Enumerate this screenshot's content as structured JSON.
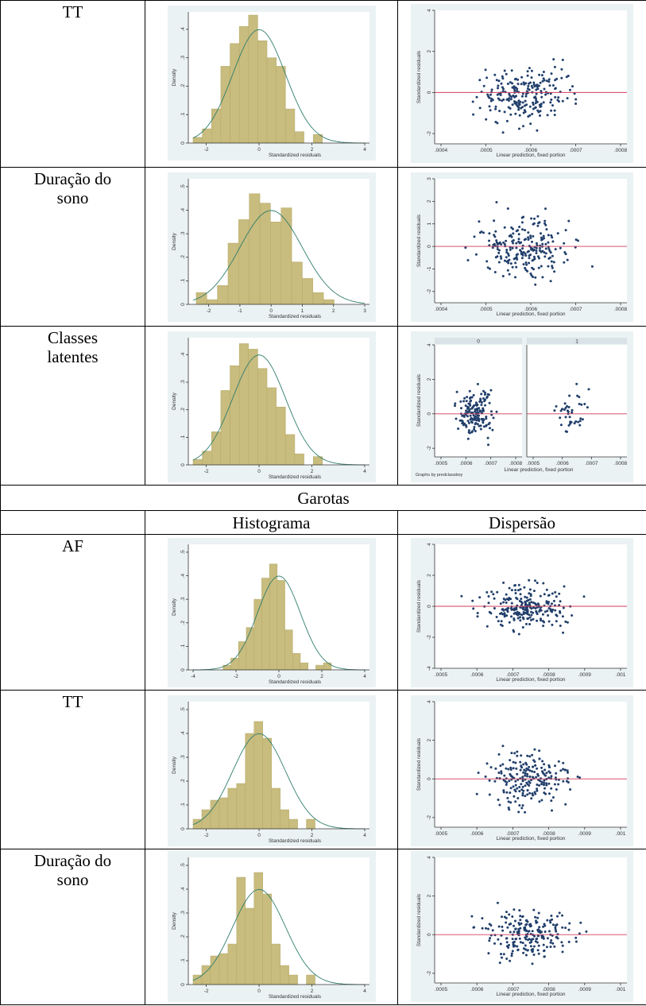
{
  "group_header": "Garotas",
  "column_headers": {
    "blank": "",
    "histogram": "Histograma",
    "scatter": "Dispersão"
  },
  "rows": [
    {
      "label": "TT",
      "label2": ""
    },
    {
      "label": "Duração do",
      "label2": "sono"
    },
    {
      "label": "Classes",
      "label2": "latentes"
    },
    {
      "label": "AF",
      "label2": ""
    },
    {
      "label": "TT",
      "label2": ""
    },
    {
      "label": "Duração do",
      "label2": "sono"
    }
  ],
  "hist_axis": {
    "xlabel": "Standardized residuals",
    "ylabel": "Density"
  },
  "scatter_axis": {
    "xlabel": "Linear prediction, fixed portion",
    "ylabel": "Standardized residuals"
  },
  "by_note": "Graphs by predclassboy",
  "by_panels": [
    "0",
    "1"
  ],
  "colors": {
    "bar": "#c8bc7e",
    "curve": "#2f7d6d",
    "refline": "#d23c5a",
    "dot": "#213f6b",
    "bg": "#eaf2f3"
  },
  "plots": [
    {
      "hist": {
        "type": "bar",
        "xlim": [
          -2.5,
          4
        ],
        "xticks": [
          "-2",
          "0",
          "2",
          "4"
        ],
        "yticks": [
          "0",
          ".1",
          ".2",
          ".3",
          ".4"
        ],
        "ylim": [
          0,
          0.45
        ],
        "bins_start": -2.5,
        "bin_width": 0.35,
        "values": [
          0.02,
          0.05,
          0.12,
          0.27,
          0.35,
          0.41,
          0.45,
          0.36,
          0.3,
          0.27,
          0.12,
          0.04,
          0.0,
          0.03,
          0.0
        ]
      },
      "scatter": {
        "type": "scatter",
        "xlim": [
          0.0004,
          0.00085
        ],
        "xticks": [
          ".0004",
          ".0005",
          ".0006",
          ".0007",
          ".0008"
        ],
        "ylim": [
          -2.5,
          4
        ],
        "yticks": [
          "-2",
          "0",
          "2",
          "4"
        ]
      }
    },
    {
      "hist": {
        "type": "bar",
        "xlim": [
          -2.5,
          3
        ],
        "xticks": [
          "-2",
          "-1",
          "0",
          "1",
          "2",
          "3"
        ],
        "yticks": [
          "0",
          ".1",
          ".2",
          ".3",
          ".4",
          ".5"
        ],
        "ylim": [
          0,
          0.52
        ],
        "bins_start": -2.4,
        "bin_width": 0.34,
        "values": [
          0.05,
          0.02,
          0.08,
          0.26,
          0.36,
          0.47,
          0.43,
          0.35,
          0.41,
          0.18,
          0.11,
          0.05,
          0.02
        ]
      },
      "scatter": {
        "type": "scatter",
        "xlim": [
          0.0004,
          0.0008
        ],
        "xticks": [
          ".0004",
          ".0005",
          ".0006",
          ".0007",
          ".0008"
        ],
        "ylim": [
          -2.5,
          3
        ],
        "yticks": [
          "-2",
          "-1",
          "0",
          "1",
          "2",
          "3"
        ]
      }
    },
    {
      "hist": {
        "type": "bar",
        "xlim": [
          -2.5,
          4
        ],
        "xticks": [
          "-2",
          "0",
          "2",
          "4"
        ],
        "yticks": [
          "0",
          ".1",
          ".2",
          ".3",
          ".4"
        ],
        "ylim": [
          0,
          0.45
        ],
        "bins_start": -2.5,
        "bin_width": 0.35,
        "values": [
          0.02,
          0.05,
          0.12,
          0.27,
          0.36,
          0.44,
          0.42,
          0.35,
          0.28,
          0.21,
          0.11,
          0.04,
          0.0,
          0.03,
          0.0
        ]
      },
      "scatter": {
        "type": "by",
        "xticks": [
          ".0005",
          ".0006",
          ".0007",
          ".0008"
        ],
        "ylim": [
          -2.5,
          4
        ],
        "yticks": [
          "-2",
          "0",
          "2",
          "4"
        ]
      }
    },
    {
      "hist": {
        "type": "bar",
        "xlim": [
          -4,
          4
        ],
        "xticks": [
          "-4",
          "-2",
          "0",
          "2",
          "4"
        ],
        "yticks": [
          "0",
          ".1",
          ".2",
          ".3",
          ".4",
          ".5"
        ],
        "ylim": [
          0,
          0.52
        ],
        "bins_start": -2.6,
        "bin_width": 0.36,
        "values": [
          0.02,
          0.05,
          0.12,
          0.18,
          0.3,
          0.39,
          0.45,
          0.38,
          0.17,
          0.07,
          0.03,
          0.0,
          0.02,
          0.03,
          0.0
        ]
      },
      "scatter": {
        "type": "scatter",
        "xlim": [
          0.0005,
          0.001
        ],
        "xticks": [
          ".0005",
          ".0006",
          ".0007",
          ".0008",
          ".0009",
          ".001"
        ],
        "ylim": [
          -4,
          4
        ],
        "yticks": [
          "-4",
          "-2",
          "0",
          "2",
          "4"
        ]
      }
    },
    {
      "hist": {
        "type": "bar",
        "xlim": [
          -2.5,
          4
        ],
        "xticks": [
          "-2",
          "0",
          "2",
          "4"
        ],
        "yticks": [
          "0",
          ".1",
          ".2",
          ".3",
          ".4",
          ".5"
        ],
        "ylim": [
          0,
          0.52
        ],
        "bins_start": -2.5,
        "bin_width": 0.33,
        "values": [
          0.04,
          0.08,
          0.12,
          0.13,
          0.17,
          0.19,
          0.4,
          0.45,
          0.38,
          0.17,
          0.08,
          0.04,
          0.0,
          0.04,
          0.0
        ]
      },
      "scatter": {
        "type": "scatter",
        "xlim": [
          0.0005,
          0.001
        ],
        "xticks": [
          ".0005",
          ".0006",
          ".0007",
          ".0008",
          ".0009",
          ".001"
        ],
        "ylim": [
          -2.5,
          4
        ],
        "yticks": [
          "-2",
          "0",
          "2",
          "4"
        ]
      }
    },
    {
      "hist": {
        "type": "bar",
        "xlim": [
          -2.5,
          4
        ],
        "xticks": [
          "-2",
          "0",
          "2",
          "4"
        ],
        "yticks": [
          "0",
          ".1",
          ".2",
          ".3",
          ".4",
          ".5"
        ],
        "ylim": [
          0,
          0.52
        ],
        "bins_start": -2.5,
        "bin_width": 0.33,
        "values": [
          0.04,
          0.08,
          0.12,
          0.13,
          0.17,
          0.45,
          0.32,
          0.47,
          0.38,
          0.17,
          0.08,
          0.04,
          0.0,
          0.04,
          0.0
        ]
      },
      "scatter": {
        "type": "scatter",
        "xlim": [
          0.0005,
          0.001
        ],
        "xticks": [
          ".0005",
          ".0006",
          ".0007",
          ".0008",
          ".0009",
          ".001"
        ],
        "ylim": [
          -2.5,
          4
        ],
        "yticks": [
          "-2",
          "0",
          "2",
          "4"
        ]
      }
    }
  ]
}
